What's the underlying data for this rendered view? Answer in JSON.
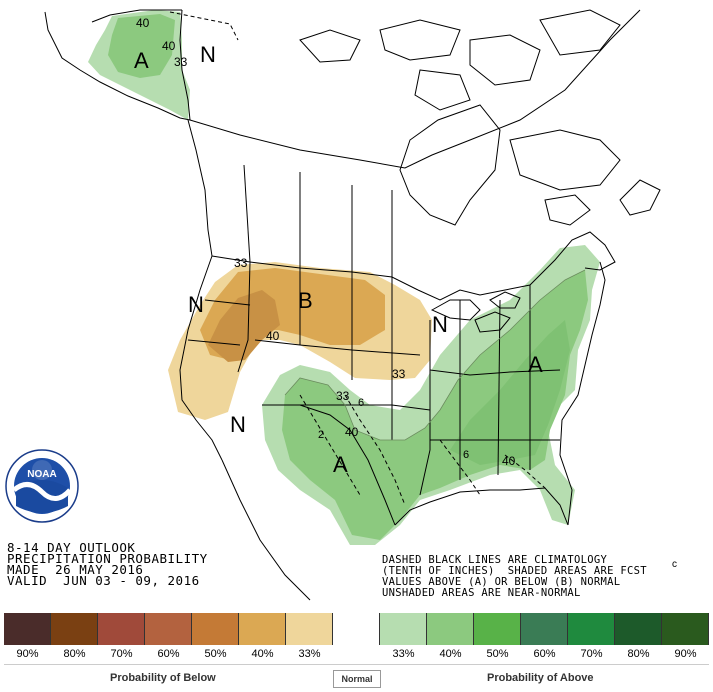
{
  "outlook": {
    "line1": "8-14 DAY OUTLOOK",
    "line2": "PRECIPITATION PROBABILITY",
    "line3": "MADE  26 MAY 2016",
    "line4": "VALID  JUN 03 - 09, 2016"
  },
  "notes": {
    "line1": "DASHED BLACK LINES ARE CLIMATOLOGY",
    "line2": "(TENTH OF INCHES)  SHADED AREAS ARE FCST",
    "line3": "VALUES ABOVE (A) OR BELOW (B) NORMAL",
    "line4": "UNSHADED AREAS ARE NEAR-NORMAL"
  },
  "logo": {
    "text": "NOAA",
    "ring_text": "NATIONAL OCEANIC AND ATMOSPHERIC ADMINISTRATION · U.S. DEPARTMENT OF COMMERCE"
  },
  "map_labels": {
    "alaska_a": "A",
    "alaska_n": "N",
    "alaska_40a": "40",
    "alaska_40b": "40",
    "alaska_33": "33",
    "west_n": "N",
    "sw_n": "N",
    "plains_b": "B",
    "b_33": "33",
    "b_40": "40",
    "glakes_n": "N",
    "south_a": "A",
    "south_33": "33",
    "south_40": "40",
    "east_a": "A",
    "east_40": "40",
    "b_33b": "33",
    "clim_6": "6",
    "clim_2": "2",
    "clim_6b": "6",
    "clim_c": "c"
  },
  "legend": {
    "swatches": [
      "#4a2c2a",
      "#7a4012",
      "#a04a3a",
      "#b3623f",
      "#c47a36",
      "#dba853",
      "#efd69b",
      "#ffffff",
      "#b6ddb0",
      "#8cc97f",
      "#58b248",
      "#3a7c55",
      "#1f8a3e",
      "#1d5a2a",
      "#2a5a1e"
    ],
    "percents": [
      "90%",
      "80%",
      "70%",
      "60%",
      "50%",
      "40%",
      "33%",
      "",
      "33%",
      "40%",
      "50%",
      "60%",
      "70%",
      "80%",
      "90%"
    ],
    "below_title": "Probability of Below",
    "above_title": "Probability of Above",
    "normal_label": "Normal"
  }
}
